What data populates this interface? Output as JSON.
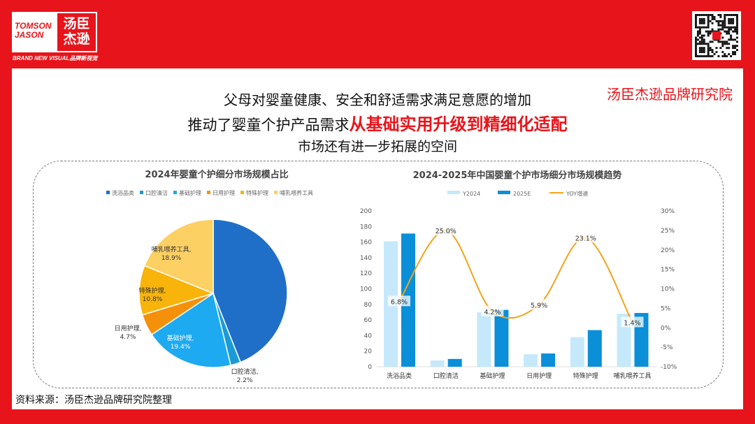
{
  "logo": {
    "en": "TOMSON JASON",
    "cn": "汤臣杰逊",
    "tagline": "BRAND NEW VISUAL品牌新视觉"
  },
  "headline": {
    "line1": "父母对婴童健康、安全和舒适需求满足意愿的增加",
    "line2_prefix": "推动了婴童个护产品需求",
    "line2_highlight": "从基础实用升级到精细化适配",
    "line3": "市场还有进一步拓展的空间"
  },
  "brand_label": "汤臣杰逊品牌研究院",
  "source": "资料来源：汤臣杰逊品牌研究院整理",
  "colors": {
    "brand_red": "#e8141b",
    "y2024": "#c5e9fb",
    "y2025": "#0a8fd8",
    "yoy": "#f5a31a"
  },
  "chart_data": [
    {
      "type": "pie",
      "title": "2024年婴童个护细分市场规模占比",
      "legend": "top",
      "slices": [
        {
          "name": "洗浴品类",
          "value": 44.0,
          "label": "44.0%",
          "color": "#1f6fc8"
        },
        {
          "name": "口腔清洁",
          "value": 2.2,
          "label": "2.2%",
          "color": "#1a9bd7"
        },
        {
          "name": "基础护理",
          "value": 19.4,
          "label": "19.4%",
          "color": "#1eaaf0"
        },
        {
          "name": "日用护理",
          "value": 4.7,
          "label": "4.7%",
          "color": "#f5900a"
        },
        {
          "name": "特殊护理",
          "value": 10.8,
          "label": "10.8%",
          "color": "#f8b40b"
        },
        {
          "name": "哺乳喂养工具",
          "value": 18.9,
          "label": "18.9%",
          "color": "#fdd064"
        }
      ]
    },
    {
      "type": "bar",
      "title": "2024-2025年中国婴童个护市场细分市场规模趋势",
      "legend": "top",
      "categories": [
        "洗浴品类",
        "口腔清洁",
        "基础护理",
        "日用护理",
        "特殊护理",
        "哺乳喂养工具"
      ],
      "series": [
        {
          "name": "Y2024",
          "values": [
            161,
            8,
            70,
            16,
            38,
            68
          ]
        },
        {
          "name": "2025E",
          "values": [
            171,
            10,
            73,
            17,
            47,
            69
          ]
        },
        {
          "name": "YOY增速",
          "type": "line",
          "axis": "right",
          "values": [
            6.8,
            25.0,
            4.2,
            5.9,
            23.1,
            1.4
          ],
          "labels": [
            "6.8%",
            "25.0%",
            "4.2%",
            "5.9%",
            "23.1%",
            "1.4%"
          ]
        }
      ],
      "ylim": [
        0,
        200
      ],
      "yticks": [
        "0",
        "20",
        "40",
        "60",
        "80",
        "100",
        "120",
        "140",
        "160",
        "180",
        "200"
      ],
      "y2lim": [
        -10,
        30
      ],
      "y2ticks": [
        "-10%",
        "-5%",
        "0%",
        "5%",
        "10%",
        "15%",
        "20%",
        "25%",
        "30%"
      ]
    }
  ]
}
